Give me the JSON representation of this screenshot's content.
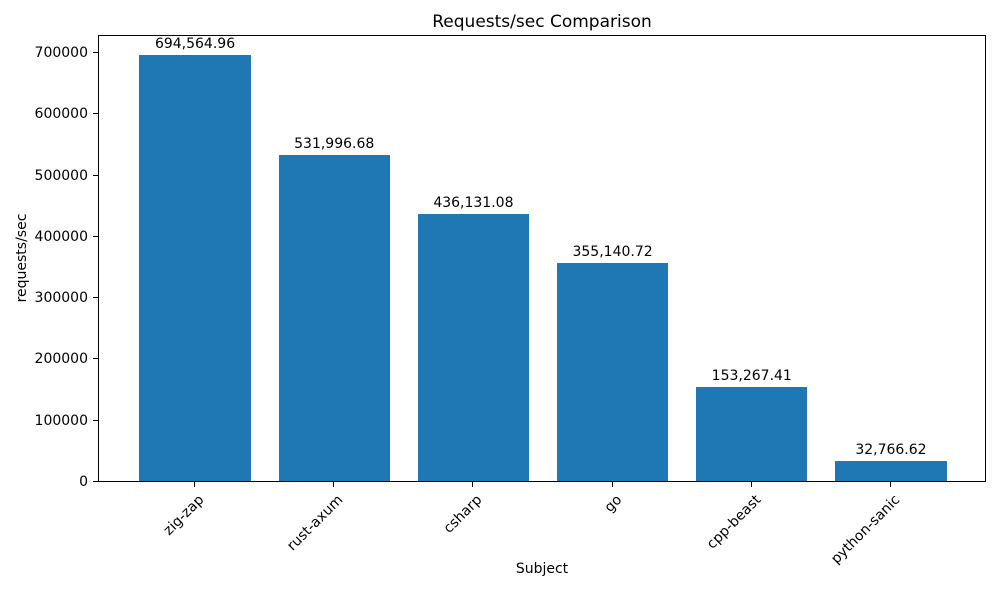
{
  "chart_data": {
    "type": "bar",
    "title": "Requests/sec Comparison",
    "xlabel": "Subject",
    "ylabel": "requests/sec",
    "categories": [
      "zig-zap",
      "rust-axum",
      "csharp",
      "go",
      "cpp-beast",
      "python-sanic"
    ],
    "values": [
      694564.96,
      531996.68,
      436131.08,
      355140.72,
      153267.41,
      32766.62
    ],
    "value_labels": [
      "694,564.96",
      "531,996.68",
      "436,131.08",
      "355,140.72",
      "153,267.41",
      "32,766.62"
    ],
    "bar_color": "#1f77b4",
    "ylim": [
      0,
      729293
    ],
    "yticks": [
      0,
      100000,
      200000,
      300000,
      400000,
      500000,
      600000,
      700000
    ],
    "bar_width_fraction": 0.8,
    "x_margin_fraction": 0.05,
    "x_tick_rotation": 45,
    "grid": false,
    "legend": "none"
  }
}
